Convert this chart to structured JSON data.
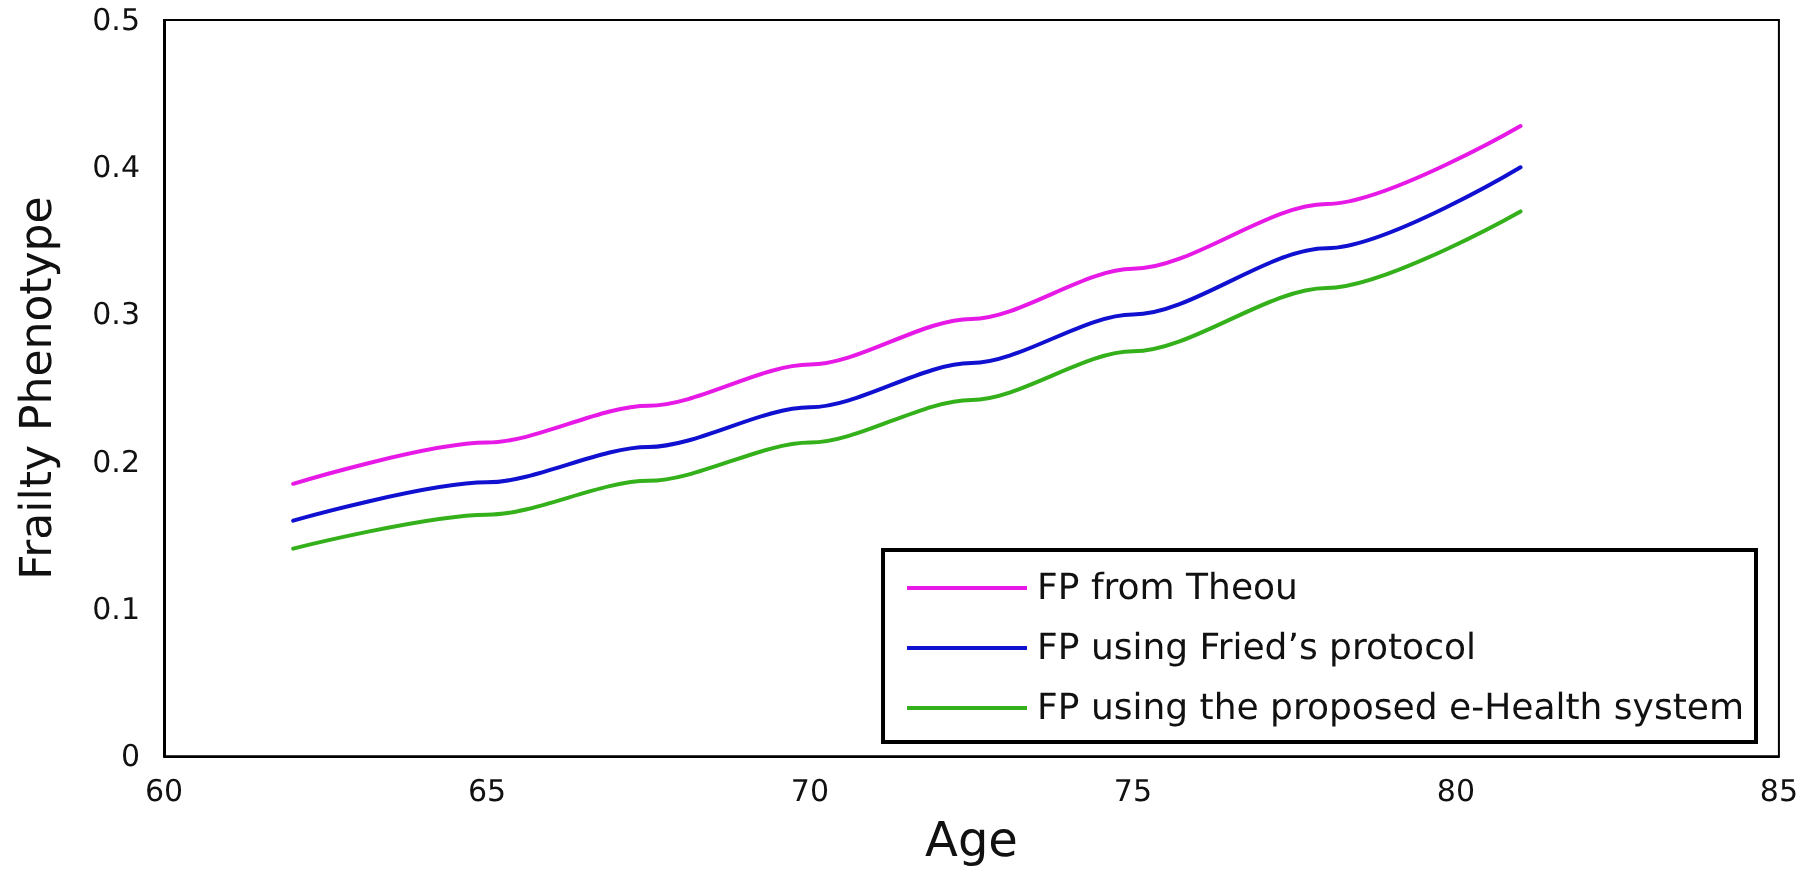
{
  "chart_data": {
    "type": "line",
    "xlabel": "Age",
    "ylabel": "Frailty Phenotype",
    "xlim": [
      60,
      85
    ],
    "xticks": [
      60,
      65,
      70,
      75,
      80,
      85
    ],
    "ylim": [
      0,
      0.5
    ],
    "yticks": [
      0,
      0.1,
      0.2,
      0.3,
      0.4,
      0.5
    ],
    "grid": false,
    "legend": "bottom right",
    "marker": "none",
    "line_style": "solid",
    "x": [
      62,
      65,
      67.5,
      70,
      72.5,
      75,
      78,
      81
    ],
    "series": [
      {
        "name": "FP from Theou",
        "color": "#e619e6",
        "values": [
          0.185,
          0.213,
          0.238,
          0.266,
          0.297,
          0.331,
          0.375,
          0.428
        ]
      },
      {
        "name": "FP using Fried’s protocol",
        "color": "#1010d0",
        "values": [
          0.16,
          0.186,
          0.21,
          0.237,
          0.267,
          0.3,
          0.345,
          0.4
        ]
      },
      {
        "name": "FP using the proposed e-Health system",
        "color": "#33b01a",
        "values": [
          0.141,
          0.164,
          0.187,
          0.213,
          0.242,
          0.275,
          0.318,
          0.37
        ]
      }
    ]
  }
}
